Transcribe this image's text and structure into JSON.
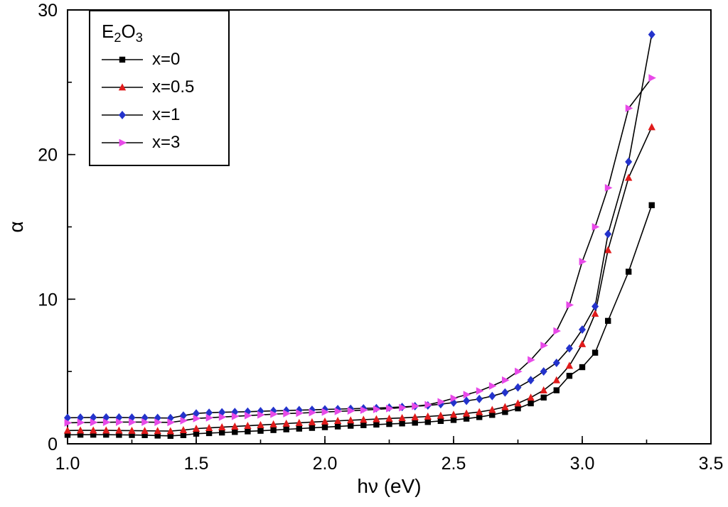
{
  "page": {
    "background": "#ffffff",
    "axis_color": "#000000"
  },
  "chart_data": {
    "type": "line",
    "title": "",
    "xlabel": "hν (eV)",
    "ylabel": "α",
    "xlim": [
      1.0,
      3.5
    ],
    "ylim": [
      0,
      30
    ],
    "xticks": [
      1.0,
      1.5,
      2.0,
      2.5,
      3.0,
      3.5
    ],
    "xtick_labels": [
      "1.0",
      "1.5",
      "2.0",
      "2.5",
      "3.0",
      "3.5"
    ],
    "yticks": [
      0,
      10,
      20,
      30
    ],
    "ytick_labels": [
      "0",
      "10",
      "20",
      "30"
    ],
    "x_minor_step": 0.25,
    "y_minor_step": 5,
    "grid": false,
    "line_color": "#000000",
    "legend": {
      "position": "top-left",
      "title_parts": [
        "E",
        "2",
        "O",
        "3"
      ]
    },
    "x": [
      1.0,
      1.05,
      1.1,
      1.15,
      1.2,
      1.25,
      1.3,
      1.35,
      1.4,
      1.45,
      1.5,
      1.55,
      1.6,
      1.65,
      1.7,
      1.75,
      1.8,
      1.85,
      1.9,
      1.95,
      2.0,
      2.05,
      2.1,
      2.15,
      2.2,
      2.25,
      2.3,
      2.35,
      2.4,
      2.45,
      2.5,
      2.55,
      2.6,
      2.65,
      2.7,
      2.75,
      2.8,
      2.85,
      2.9,
      2.95,
      3.0,
      3.05,
      3.1,
      3.18,
      3.27
    ],
    "series": [
      {
        "name": "x=0",
        "marker": "square",
        "color": "#000000",
        "y": [
          0.62,
          0.63,
          0.63,
          0.63,
          0.62,
          0.61,
          0.6,
          0.57,
          0.55,
          0.6,
          0.7,
          0.74,
          0.78,
          0.82,
          0.86,
          0.9,
          0.95,
          1.0,
          1.05,
          1.1,
          1.15,
          1.2,
          1.25,
          1.29,
          1.33,
          1.37,
          1.41,
          1.46,
          1.51,
          1.58,
          1.65,
          1.74,
          1.85,
          2.0,
          2.2,
          2.45,
          2.8,
          3.2,
          3.7,
          4.7,
          5.3,
          6.3,
          8.5,
          11.9,
          16.5
        ]
      },
      {
        "name": "x=0.5",
        "marker": "triangle-up",
        "color": "#e01b1b",
        "y": [
          0.92,
          0.93,
          0.93,
          0.93,
          0.92,
          0.91,
          0.9,
          0.89,
          0.88,
          0.95,
          1.05,
          1.1,
          1.15,
          1.2,
          1.25,
          1.3,
          1.35,
          1.4,
          1.45,
          1.5,
          1.55,
          1.59,
          1.63,
          1.67,
          1.71,
          1.75,
          1.79,
          1.84,
          1.89,
          1.95,
          2.02,
          2.1,
          2.2,
          2.35,
          2.55,
          2.8,
          3.2,
          3.7,
          4.4,
          5.4,
          6.9,
          9.0,
          13.4,
          18.4,
          21.9
        ]
      },
      {
        "name": "x=1",
        "marker": "diamond",
        "color": "#2433cc",
        "y": [
          1.8,
          1.81,
          1.82,
          1.82,
          1.82,
          1.81,
          1.8,
          1.79,
          1.78,
          1.95,
          2.1,
          2.15,
          2.18,
          2.2,
          2.22,
          2.25,
          2.28,
          2.3,
          2.33,
          2.35,
          2.38,
          2.4,
          2.42,
          2.45,
          2.47,
          2.51,
          2.55,
          2.6,
          2.65,
          2.74,
          2.85,
          2.97,
          3.1,
          3.3,
          3.55,
          3.9,
          4.4,
          5.0,
          5.6,
          6.6,
          7.9,
          9.5,
          14.5,
          19.5,
          28.3
        ]
      },
      {
        "name": "x=3",
        "marker": "triangle-right",
        "color": "#e84ae8",
        "y": [
          1.45,
          1.47,
          1.48,
          1.49,
          1.5,
          1.5,
          1.5,
          1.49,
          1.48,
          1.6,
          1.75,
          1.8,
          1.85,
          1.9,
          1.95,
          2.0,
          2.05,
          2.09,
          2.12,
          2.16,
          2.2,
          2.24,
          2.28,
          2.33,
          2.38,
          2.44,
          2.5,
          2.6,
          2.7,
          2.9,
          3.15,
          3.4,
          3.65,
          4.0,
          4.4,
          5.0,
          5.8,
          6.8,
          7.8,
          9.6,
          12.6,
          15.0,
          17.7,
          23.2,
          25.3
        ]
      }
    ]
  }
}
